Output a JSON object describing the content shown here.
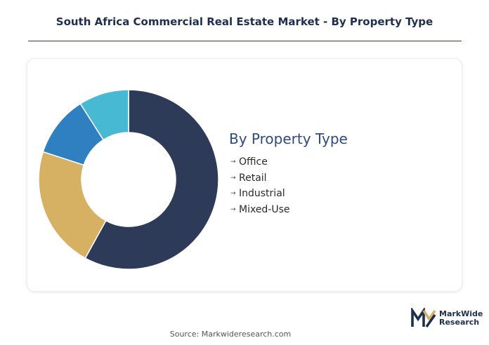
{
  "header": {
    "title": "South Africa Commercial Real Estate Market - By Property Type"
  },
  "chart_data": {
    "type": "pie",
    "donut": true,
    "legend_title": "By Property Type",
    "categories": [
      "Office",
      "Retail",
      "Industrial",
      "Mixed-Use"
    ],
    "values": [
      58,
      22,
      11,
      9
    ],
    "colors": [
      "#2d3b59",
      "#d6b163",
      "#2f80c1",
      "#47b9d3"
    ],
    "legend_position": "right"
  },
  "footer": {
    "source": "Source: Markwideresearch.com",
    "logo_line1": "MarkWide",
    "logo_line2": "Research"
  }
}
